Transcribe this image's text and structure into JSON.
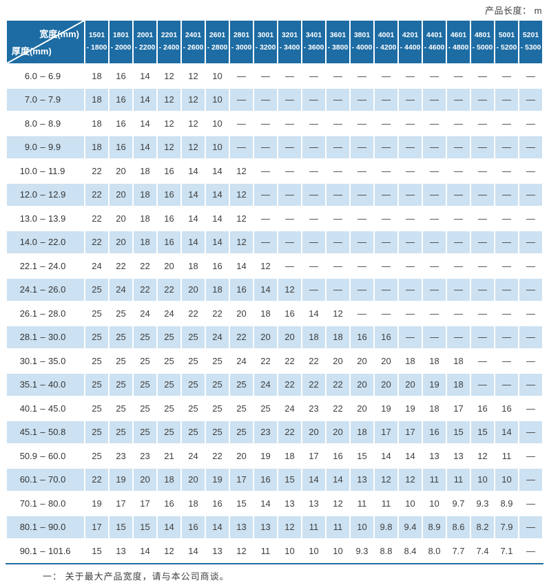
{
  "page": {
    "product_length_note": "产品长度： m",
    "footnote": "一： 关于最大产品宽度，请与本公司商谈。"
  },
  "table": {
    "corner_width_label": "宽度(mm)",
    "corner_thickness_label": "厚度(mm)",
    "columns": [
      [
        "1501",
        "- 1800"
      ],
      [
        "1801",
        "- 2000"
      ],
      [
        "2001",
        "- 2200"
      ],
      [
        "2201",
        "- 2400"
      ],
      [
        "2401",
        "- 2600"
      ],
      [
        "2601",
        "- 2800"
      ],
      [
        "2801",
        "- 3000"
      ],
      [
        "3001",
        "- 3200"
      ],
      [
        "3201",
        "- 3400"
      ],
      [
        "3401",
        "- 3600"
      ],
      [
        "3601",
        "- 3800"
      ],
      [
        "3801",
        "- 4000"
      ],
      [
        "4001",
        "- 4200"
      ],
      [
        "4201",
        "- 4400"
      ],
      [
        "4401",
        "- 4600"
      ],
      [
        "4601",
        "- 4800"
      ],
      [
        "4801",
        "- 5000"
      ],
      [
        "5001",
        "- 5200"
      ],
      [
        "5201",
        "- 5300"
      ]
    ],
    "rows": [
      {
        "range": [
          "6.0",
          "6.9"
        ],
        "values": [
          "18",
          "16",
          "14",
          "12",
          "12",
          "10",
          "—",
          "—",
          "—",
          "—",
          "—",
          "—",
          "—",
          "—",
          "—",
          "—",
          "—",
          "—",
          "—"
        ]
      },
      {
        "range": [
          "7.0",
          "7.9"
        ],
        "values": [
          "18",
          "16",
          "14",
          "12",
          "12",
          "10",
          "—",
          "—",
          "—",
          "—",
          "—",
          "—",
          "—",
          "—",
          "—",
          "—",
          "—",
          "—",
          "—"
        ]
      },
      {
        "range": [
          "8.0",
          "8.9"
        ],
        "values": [
          "18",
          "16",
          "14",
          "12",
          "12",
          "10",
          "—",
          "—",
          "—",
          "—",
          "—",
          "—",
          "—",
          "—",
          "—",
          "—",
          "—",
          "—",
          "—"
        ]
      },
      {
        "range": [
          "9.0",
          "9.9"
        ],
        "values": [
          "18",
          "16",
          "14",
          "12",
          "12",
          "10",
          "—",
          "—",
          "—",
          "—",
          "—",
          "—",
          "—",
          "—",
          "—",
          "—",
          "—",
          "—",
          "—"
        ]
      },
      {
        "range": [
          "10.0",
          "11.9"
        ],
        "values": [
          "22",
          "20",
          "18",
          "16",
          "14",
          "14",
          "12",
          "—",
          "—",
          "—",
          "—",
          "—",
          "—",
          "—",
          "—",
          "—",
          "—",
          "—",
          "—"
        ]
      },
      {
        "range": [
          "12.0",
          "12.9"
        ],
        "values": [
          "22",
          "20",
          "18",
          "16",
          "14",
          "14",
          "12",
          "—",
          "—",
          "—",
          "—",
          "—",
          "—",
          "—",
          "—",
          "—",
          "—",
          "—",
          "—"
        ]
      },
      {
        "range": [
          "13.0",
          "13.9"
        ],
        "values": [
          "22",
          "20",
          "18",
          "16",
          "14",
          "14",
          "12",
          "—",
          "—",
          "—",
          "—",
          "—",
          "—",
          "—",
          "—",
          "—",
          "—",
          "—",
          "—"
        ]
      },
      {
        "range": [
          "14.0",
          "22.0"
        ],
        "values": [
          "22",
          "20",
          "18",
          "16",
          "14",
          "14",
          "12",
          "—",
          "—",
          "—",
          "—",
          "—",
          "—",
          "—",
          "—",
          "—",
          "—",
          "—",
          "—"
        ]
      },
      {
        "range": [
          "22.1",
          "24.0"
        ],
        "values": [
          "24",
          "22",
          "22",
          "20",
          "18",
          "16",
          "14",
          "12",
          "—",
          "—",
          "—",
          "—",
          "—",
          "—",
          "—",
          "—",
          "—",
          "—",
          "—"
        ]
      },
      {
        "range": [
          "24.1",
          "26.0"
        ],
        "values": [
          "25",
          "24",
          "22",
          "22",
          "20",
          "18",
          "16",
          "14",
          "12",
          "—",
          "—",
          "—",
          "—",
          "—",
          "—",
          "—",
          "—",
          "—",
          "—"
        ]
      },
      {
        "range": [
          "26.1",
          "28.0"
        ],
        "values": [
          "25",
          "25",
          "24",
          "24",
          "22",
          "22",
          "20",
          "18",
          "16",
          "14",
          "12",
          "—",
          "—",
          "—",
          "—",
          "—",
          "—",
          "—",
          "—"
        ]
      },
      {
        "range": [
          "28.1",
          "30.0"
        ],
        "values": [
          "25",
          "25",
          "25",
          "25",
          "25",
          "24",
          "22",
          "20",
          "20",
          "18",
          "18",
          "16",
          "16",
          "—",
          "—",
          "—",
          "—",
          "—",
          "—"
        ]
      },
      {
        "range": [
          "30.1",
          "35.0"
        ],
        "values": [
          "25",
          "25",
          "25",
          "25",
          "25",
          "25",
          "24",
          "22",
          "22",
          "22",
          "20",
          "20",
          "20",
          "18",
          "18",
          "18",
          "—",
          "—",
          "—"
        ]
      },
      {
        "range": [
          "35.1",
          "40.0"
        ],
        "values": [
          "25",
          "25",
          "25",
          "25",
          "25",
          "25",
          "25",
          "24",
          "22",
          "22",
          "22",
          "20",
          "20",
          "20",
          "19",
          "18",
          "—",
          "—",
          "—"
        ]
      },
      {
        "range": [
          "40.1",
          "45.0"
        ],
        "values": [
          "25",
          "25",
          "25",
          "25",
          "25",
          "25",
          "25",
          "25",
          "24",
          "23",
          "22",
          "20",
          "19",
          "19",
          "18",
          "17",
          "16",
          "16",
          "—"
        ]
      },
      {
        "range": [
          "45.1",
          "50.8"
        ],
        "values": [
          "25",
          "25",
          "25",
          "25",
          "25",
          "25",
          "25",
          "23",
          "22",
          "20",
          "20",
          "18",
          "17",
          "17",
          "16",
          "15",
          "15",
          "14",
          "—"
        ]
      },
      {
        "range": [
          "50.9",
          "60.0"
        ],
        "values": [
          "25",
          "23",
          "23",
          "21",
          "24",
          "22",
          "20",
          "19",
          "18",
          "17",
          "16",
          "15",
          "14",
          "14",
          "13",
          "13",
          "12",
          "11",
          "—"
        ]
      },
      {
        "range": [
          "60.1",
          "70.0"
        ],
        "values": [
          "22",
          "19",
          "20",
          "18",
          "20",
          "19",
          "17",
          "16",
          "15",
          "14",
          "14",
          "13",
          "12",
          "12",
          "11",
          "11",
          "10",
          "10",
          "—"
        ]
      },
      {
        "range": [
          "70.1",
          "80.0"
        ],
        "values": [
          "19",
          "17",
          "17",
          "16",
          "18",
          "16",
          "15",
          "14",
          "13",
          "13",
          "12",
          "11",
          "11",
          "10",
          "10",
          "9.7",
          "9.3",
          "8.9",
          "—"
        ]
      },
      {
        "range": [
          "80.1",
          "90.0"
        ],
        "values": [
          "17",
          "15",
          "15",
          "14",
          "16",
          "14",
          "13",
          "13",
          "12",
          "11",
          "11",
          "10",
          "9.8",
          "9.4",
          "8.9",
          "8.6",
          "8.2",
          "7.9",
          "—"
        ]
      },
      {
        "range": [
          "90.1",
          "101.6"
        ],
        "values": [
          "15",
          "13",
          "14",
          "12",
          "14",
          "13",
          "12",
          "11",
          "10",
          "10",
          "10",
          "9.3",
          "8.8",
          "8.4",
          "8.0",
          "7.7",
          "7.4",
          "7.1",
          "—"
        ]
      }
    ]
  },
  "colors": {
    "header_blue": "#1d6ca3",
    "zebra_blue": "#cce1f1",
    "text": "#3d3d3d"
  }
}
